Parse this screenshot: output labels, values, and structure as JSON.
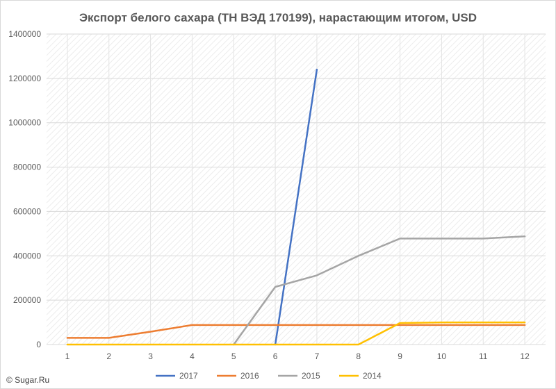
{
  "chart_data": {
    "type": "line",
    "title": "Экспорт белого сахара (ТН ВЭД 170199), нарастающим итогом, USD",
    "xlabel": "",
    "ylabel": "",
    "x": [
      1,
      2,
      3,
      4,
      5,
      6,
      7,
      8,
      9,
      10,
      11,
      12
    ],
    "x_tick_labels": [
      "1",
      "2",
      "3",
      "4",
      "5",
      "6",
      "7",
      "8",
      "9",
      "10",
      "11",
      "12"
    ],
    "ylim": [
      0,
      1400000
    ],
    "y_ticks": [
      0,
      200000,
      400000,
      600000,
      800000,
      1000000,
      1200000,
      1400000
    ],
    "y_tick_labels": [
      "0",
      "200000",
      "400000",
      "600000",
      "800000",
      "1000000",
      "1200000",
      "1400000"
    ],
    "grid": true,
    "legend_position": "bottom",
    "series": [
      {
        "name": "2017",
        "color": "#4472c4",
        "values": [
          null,
          null,
          null,
          null,
          null,
          0,
          1240000,
          null,
          null,
          null,
          null,
          null
        ]
      },
      {
        "name": "2016",
        "color": "#ed7d31",
        "values": [
          30000,
          30000,
          58000,
          88000,
          88000,
          88000,
          88000,
          88000,
          88000,
          88000,
          88000,
          88000
        ]
      },
      {
        "name": "2015",
        "color": "#a5a5a5",
        "values": [
          null,
          null,
          null,
          null,
          0,
          260000,
          312000,
          400000,
          478000,
          478000,
          478000,
          488000
        ]
      },
      {
        "name": "2014",
        "color": "#ffc000",
        "values": [
          0,
          0,
          0,
          0,
          0,
          0,
          0,
          0,
          97000,
          100000,
          100000,
          100000
        ]
      }
    ]
  },
  "watermark": {
    "text": "© Sugar.Ru"
  }
}
